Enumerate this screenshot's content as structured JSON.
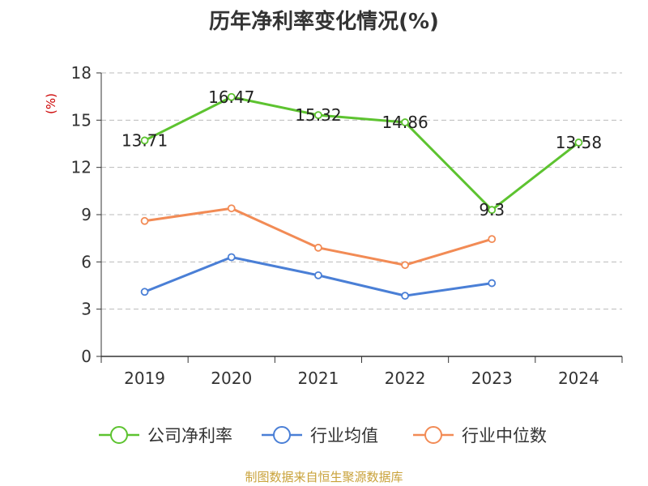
{
  "chart_data": {
    "type": "line",
    "title": "历年净利率变化情况(%)",
    "ylabel": "(%)",
    "ylabel_color": "#cc0000",
    "categories": [
      "2019",
      "2020",
      "2021",
      "2022",
      "2023",
      "2024"
    ],
    "ylim": [
      0,
      18
    ],
    "yticks": [
      0,
      3,
      6,
      9,
      12,
      15,
      18
    ],
    "ytick_labels": [
      "0",
      "3",
      "6",
      "9",
      "12",
      "15",
      "18"
    ],
    "grid": true,
    "legend_position": "bottom",
    "series": [
      {
        "name": "公司净利率",
        "color": "#5dc330",
        "values": [
          13.71,
          16.47,
          15.32,
          14.86,
          9.3,
          13.58
        ],
        "labels": [
          "13.71",
          "16.47",
          "15.32",
          "14.86",
          "9.3",
          "13.58"
        ]
      },
      {
        "name": "行业均值",
        "color": "#4a7fd6",
        "values": [
          4.1,
          6.3,
          5.15,
          3.85,
          4.65,
          null
        ]
      },
      {
        "name": "行业中位数",
        "color": "#f28b55",
        "values": [
          8.6,
          9.4,
          6.9,
          5.8,
          7.45,
          null
        ]
      }
    ]
  },
  "source": "制图数据来自恒生聚源数据库"
}
